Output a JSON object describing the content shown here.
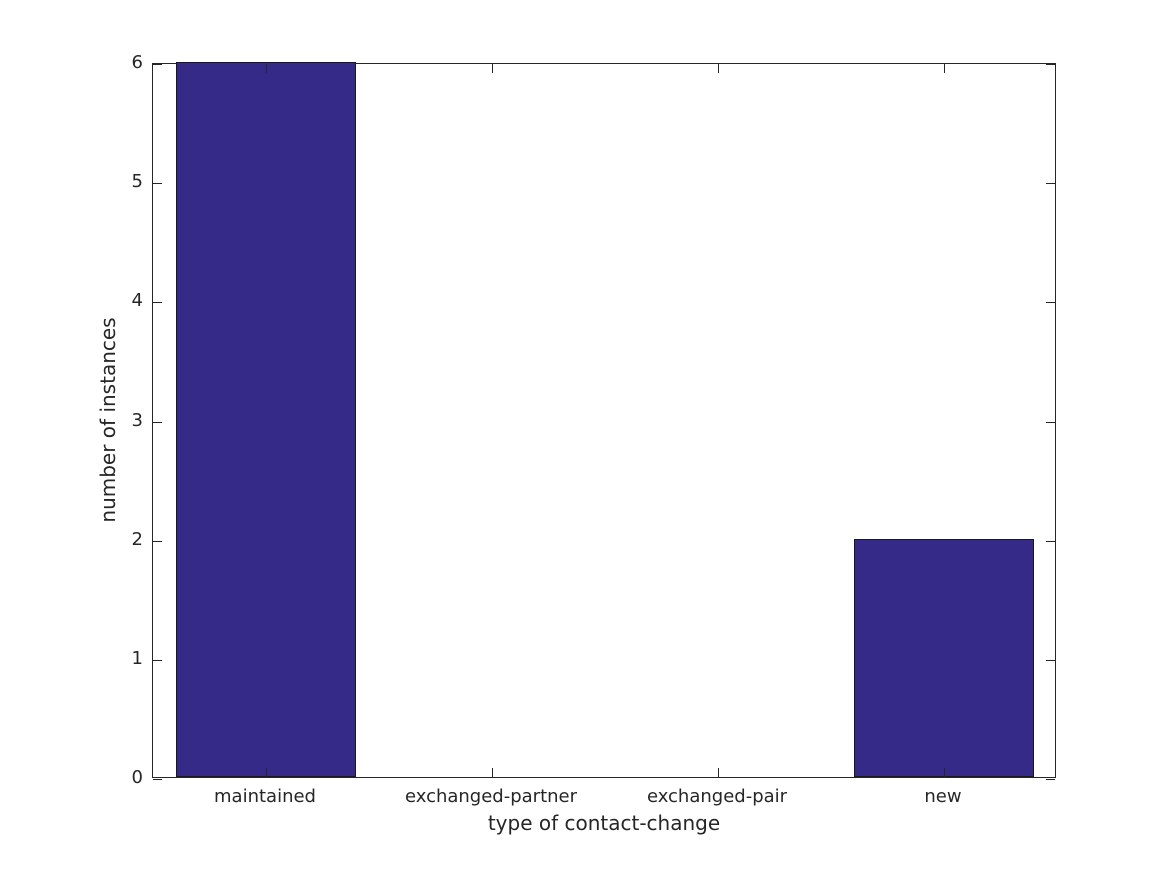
{
  "figure": {
    "background_color": "#ffffff"
  },
  "chart_data": {
    "type": "bar",
    "categories": [
      "maintained",
      "exchanged-partner",
      "exchanged-pair",
      "new"
    ],
    "values": [
      6,
      0,
      0,
      2
    ],
    "title": "",
    "xlabel": "type of contact-change",
    "ylabel": "number of instances",
    "ylim": [
      0,
      6
    ],
    "yticks": [
      0,
      1,
      2,
      3,
      4,
      5,
      6
    ],
    "grid": false,
    "legend": null,
    "bar_color": "#352A87",
    "bar_edge_color": "#1a1a1a",
    "axis_color": "#262626",
    "text_color": "#262626",
    "bar_width_fraction": 0.8,
    "ticks_inward": true,
    "box_on": true
  }
}
